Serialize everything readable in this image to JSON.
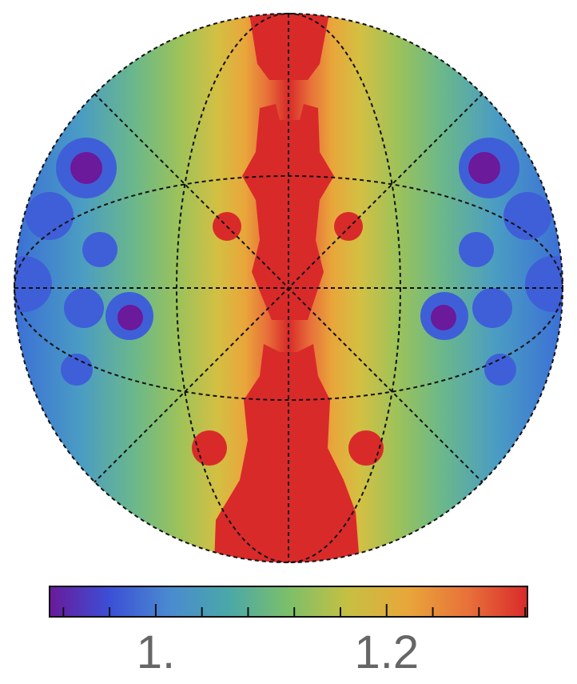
{
  "chart_data": {
    "type": "contour",
    "colorbar": {
      "lim": [
        0.908,
        1.322
      ],
      "ticks": [
        {
          "value": 1,
          "label": "1."
        },
        1.2
      ],
      "minor_ticks": [
        0.92,
        0.96,
        1.04,
        1.08,
        1.12,
        1.16,
        1.24,
        1.28,
        1.32
      ],
      "colors": [
        "#6a1a9a",
        "#3b4fd6",
        "#4a8ad0",
        "#4aa8a8",
        "#7cbf6a",
        "#c6c042",
        "#e9a63a",
        "#e8713a",
        "#d92a2a"
      ]
    }
  }
}
